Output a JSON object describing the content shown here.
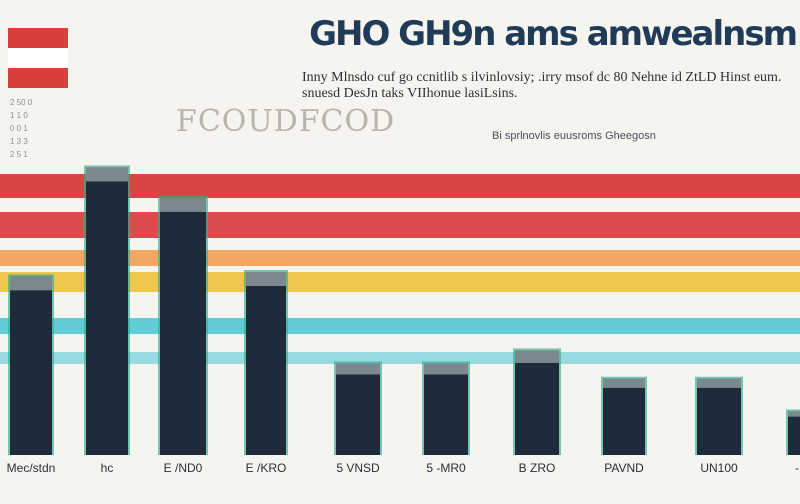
{
  "flag_colors": [
    "#d8403c",
    "#ffffff",
    "#d8403c"
  ],
  "title": "GHO GH9n ams amwealnsm",
  "subtitle": "Inny Mlnsdo cuf go ccnitlib s ilvinlovsiy; .irry msof dc 80 Nehne id ZtLD Hinst eum. snuesd DesJn taks VIIhonue lasiLsins.",
  "big_text": "FCOUDFCOD",
  "source_text": "Bi sprlnovlis euusroms Gheegosn",
  "side_labels": [
    "2 50 0",
    "1 1 0",
    "0 0 1",
    "1 3 3",
    "2 5 1"
  ],
  "colors": {
    "bar_fill": "#1d2b3a",
    "bar_glow": "#2fae8e",
    "bar_cap": "#c9d6d3",
    "band_red": "#d93a3a",
    "band_orange": "#ef9a4a",
    "band_yellow": "#f0c23c",
    "band_cyan": "#48c5d3"
  },
  "chart_data": {
    "type": "bar",
    "categories": [
      "Mec/stdn",
      "hc",
      "E /ND0",
      "E /KRO",
      "5 VNSD",
      "5 -MR0",
      "B ZRO",
      "PAVND",
      "UN100",
      "-"
    ],
    "values": [
      82,
      132,
      118,
      84,
      42,
      42,
      48,
      35,
      35,
      20
    ],
    "ylim": [
      0,
      140
    ]
  }
}
